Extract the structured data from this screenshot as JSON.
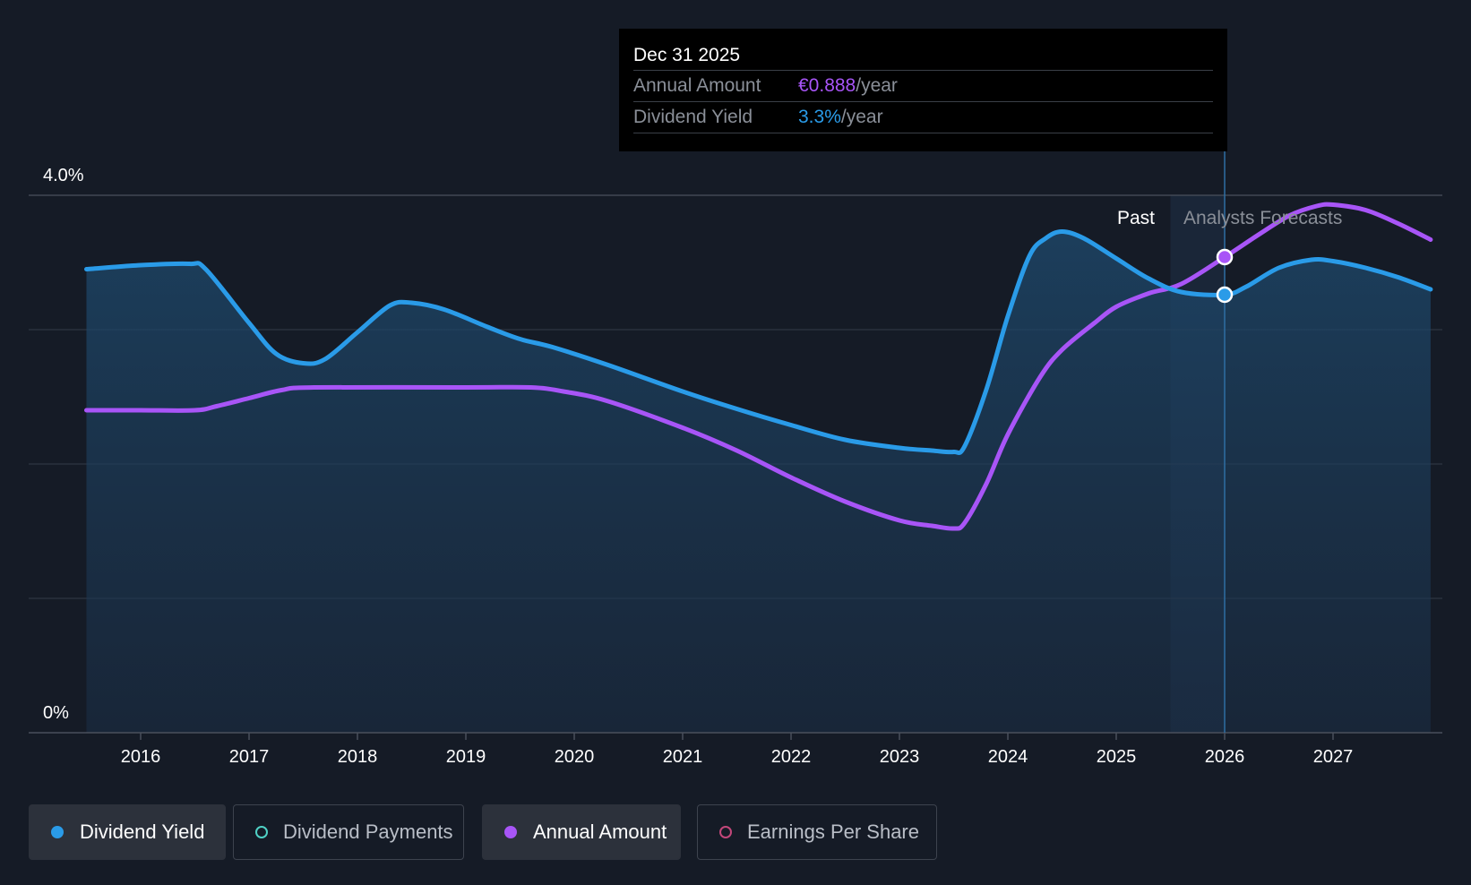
{
  "tooltip": {
    "date": "Dec 31 2025",
    "rows": [
      {
        "label": "Annual Amount",
        "value": "€0.888",
        "unit": "/year"
      },
      {
        "label": "Dividend Yield",
        "value": "3.3%",
        "unit": "/year"
      }
    ]
  },
  "labels": {
    "past": "Past",
    "forecast": "Analysts Forecasts"
  },
  "legend": [
    {
      "label": "Dividend Yield",
      "color": "#2a9be8",
      "active": true,
      "filled": true
    },
    {
      "label": "Dividend Payments",
      "color": "#4fd1c5",
      "active": false,
      "filled": false
    },
    {
      "label": "Annual Amount",
      "color": "#a855f7",
      "active": true,
      "filled": true
    },
    {
      "label": "Earnings Per Share",
      "color": "#c2477a",
      "active": false,
      "filled": false
    }
  ],
  "colors": {
    "background": "#151b26",
    "dividend_yield": "#2a9be8",
    "annual_amount": "#a855f7",
    "grid": "#3a4150",
    "forecast_band": "#1b2a3c"
  },
  "chart_data": {
    "type": "line",
    "y_tick_labels": [
      "4.0%",
      "0%"
    ],
    "ylim": [
      0,
      4.0
    ],
    "x_tick_labels": [
      "2016",
      "2017",
      "2018",
      "2019",
      "2020",
      "2021",
      "2022",
      "2023",
      "2024",
      "2025",
      "2026",
      "2027"
    ],
    "xlim": [
      2015.5,
      2027.9
    ],
    "past_end": 2025.5,
    "selected_x": 2026.0,
    "series": [
      {
        "name": "Dividend Yield",
        "points": [
          [
            2015.5,
            3.45
          ],
          [
            2016.0,
            3.48
          ],
          [
            2016.45,
            3.49
          ],
          [
            2016.6,
            3.45
          ],
          [
            2017.0,
            3.05
          ],
          [
            2017.25,
            2.82
          ],
          [
            2017.5,
            2.75
          ],
          [
            2017.7,
            2.78
          ],
          [
            2018.0,
            2.98
          ],
          [
            2018.3,
            3.18
          ],
          [
            2018.5,
            3.2
          ],
          [
            2018.8,
            3.15
          ],
          [
            2019.2,
            3.02
          ],
          [
            2019.5,
            2.93
          ],
          [
            2019.8,
            2.87
          ],
          [
            2020.3,
            2.74
          ],
          [
            2021.0,
            2.54
          ],
          [
            2021.5,
            2.41
          ],
          [
            2022.0,
            2.29
          ],
          [
            2022.5,
            2.18
          ],
          [
            2023.0,
            2.12
          ],
          [
            2023.3,
            2.1
          ],
          [
            2023.5,
            2.09
          ],
          [
            2023.6,
            2.13
          ],
          [
            2023.8,
            2.55
          ],
          [
            2024.0,
            3.1
          ],
          [
            2024.2,
            3.55
          ],
          [
            2024.35,
            3.68
          ],
          [
            2024.5,
            3.73
          ],
          [
            2024.7,
            3.68
          ],
          [
            2025.0,
            3.53
          ],
          [
            2025.3,
            3.38
          ],
          [
            2025.6,
            3.28
          ],
          [
            2026.0,
            3.26
          ],
          [
            2026.2,
            3.32
          ],
          [
            2026.5,
            3.46
          ],
          [
            2026.8,
            3.52
          ],
          [
            2027.0,
            3.51
          ],
          [
            2027.3,
            3.46
          ],
          [
            2027.6,
            3.39
          ],
          [
            2027.9,
            3.3
          ]
        ]
      },
      {
        "name": "Annual Amount",
        "points": [
          [
            2015.5,
            2.4
          ],
          [
            2016.0,
            2.4
          ],
          [
            2016.5,
            2.4
          ],
          [
            2016.7,
            2.43
          ],
          [
            2017.0,
            2.49
          ],
          [
            2017.3,
            2.55
          ],
          [
            2017.6,
            2.57
          ],
          [
            2019.0,
            2.57
          ],
          [
            2019.6,
            2.57
          ],
          [
            2019.9,
            2.54
          ],
          [
            2020.3,
            2.47
          ],
          [
            2021.0,
            2.27
          ],
          [
            2021.5,
            2.1
          ],
          [
            2022.0,
            1.9
          ],
          [
            2022.5,
            1.72
          ],
          [
            2023.0,
            1.58
          ],
          [
            2023.3,
            1.54
          ],
          [
            2023.5,
            1.52
          ],
          [
            2023.6,
            1.56
          ],
          [
            2023.8,
            1.85
          ],
          [
            2024.0,
            2.22
          ],
          [
            2024.3,
            2.65
          ],
          [
            2024.5,
            2.85
          ],
          [
            2024.8,
            3.05
          ],
          [
            2025.0,
            3.17
          ],
          [
            2025.3,
            3.27
          ],
          [
            2025.6,
            3.34
          ],
          [
            2026.0,
            3.54
          ],
          [
            2026.3,
            3.7
          ],
          [
            2026.6,
            3.85
          ],
          [
            2026.85,
            3.92
          ],
          [
            2027.0,
            3.93
          ],
          [
            2027.3,
            3.89
          ],
          [
            2027.6,
            3.79
          ],
          [
            2027.9,
            3.67
          ]
        ]
      }
    ]
  }
}
